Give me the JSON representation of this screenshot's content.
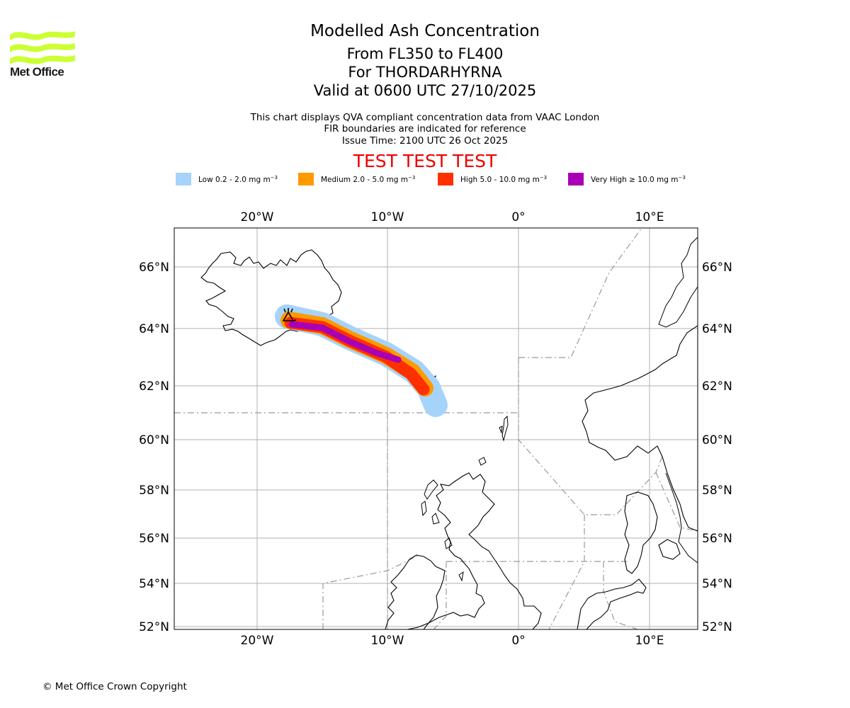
{
  "logo": {
    "text": "Met Office",
    "color": "#ccff33"
  },
  "titles": {
    "main": "Modelled Ash Concentration",
    "levels": "From FL350 to FL400",
    "volcano": "For THORDARHYRNA",
    "valid": "Valid at 0600 UTC 27/10/2025"
  },
  "subtitles": {
    "line1": "This chart displays QVA compliant concentration data from VAAC London",
    "line2": "FIR boundaries are indicated for reference",
    "line3": "Issue Time: 2100 UTC 26 Oct 2025"
  },
  "test_banner": "TEST TEST TEST",
  "legend": [
    {
      "label": "Low 0.2 - 2.0 mg m",
      "sup": "−3",
      "color": "#a6d3fa"
    },
    {
      "label": "Medium 2.0 - 5.0 mg m",
      "sup": "−3",
      "color": "#ff9a00"
    },
    {
      "label": "High 5.0 - 10.0 mg m",
      "sup": "−3",
      "color": "#ff3000"
    },
    {
      "label": "Very High  ≥  10.0 mg m",
      "sup": "−3",
      "color": "#a800b4"
    }
  ],
  "axes": {
    "lon_ticks": [
      "20°W",
      "10°W",
      "0°",
      "10°E"
    ],
    "lat_ticks": [
      "66°N",
      "64°N",
      "62°N",
      "60°N",
      "58°N",
      "56°N",
      "54°N",
      "52°N"
    ]
  },
  "copyright": "© Met Office Crown Copyright"
}
